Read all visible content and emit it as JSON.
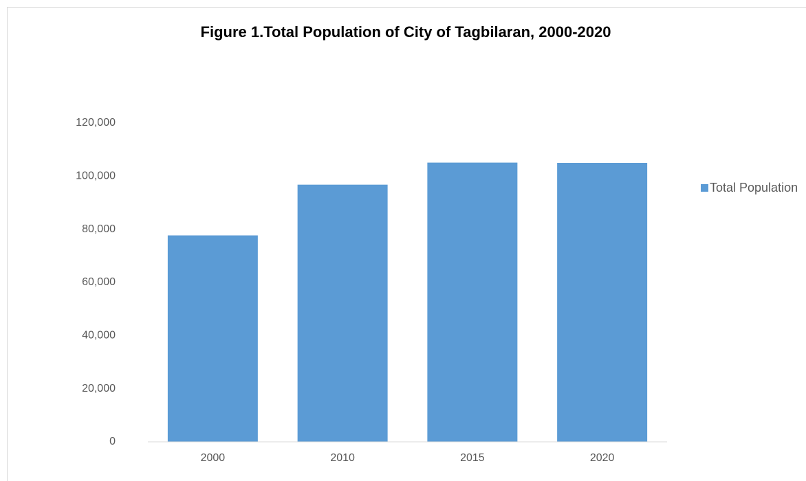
{
  "chart_data": {
    "type": "bar",
    "title": "Figure 1.Total Population of City of Tagbilaran, 2000-2020",
    "categories": [
      "2000",
      "2010",
      "2015",
      "2020"
    ],
    "series": [
      {
        "name": "Total Population",
        "color": "#5b9bd5",
        "values": [
          77700,
          96800,
          105100,
          105000
        ]
      }
    ],
    "ylim": [
      0,
      120000
    ],
    "yticks": [
      0,
      {
        "value": 20000,
        "label": "20,000"
      },
      {
        "value": 40000,
        "label": "40,000"
      },
      {
        "value": 60000,
        "label": "60,000"
      },
      {
        "value": 80000,
        "label": "80,000"
      },
      {
        "value": 100000,
        "label": "100,000"
      },
      {
        "value": 120000,
        "label": "120,000"
      }
    ],
    "grid": false,
    "legend": "right"
  }
}
